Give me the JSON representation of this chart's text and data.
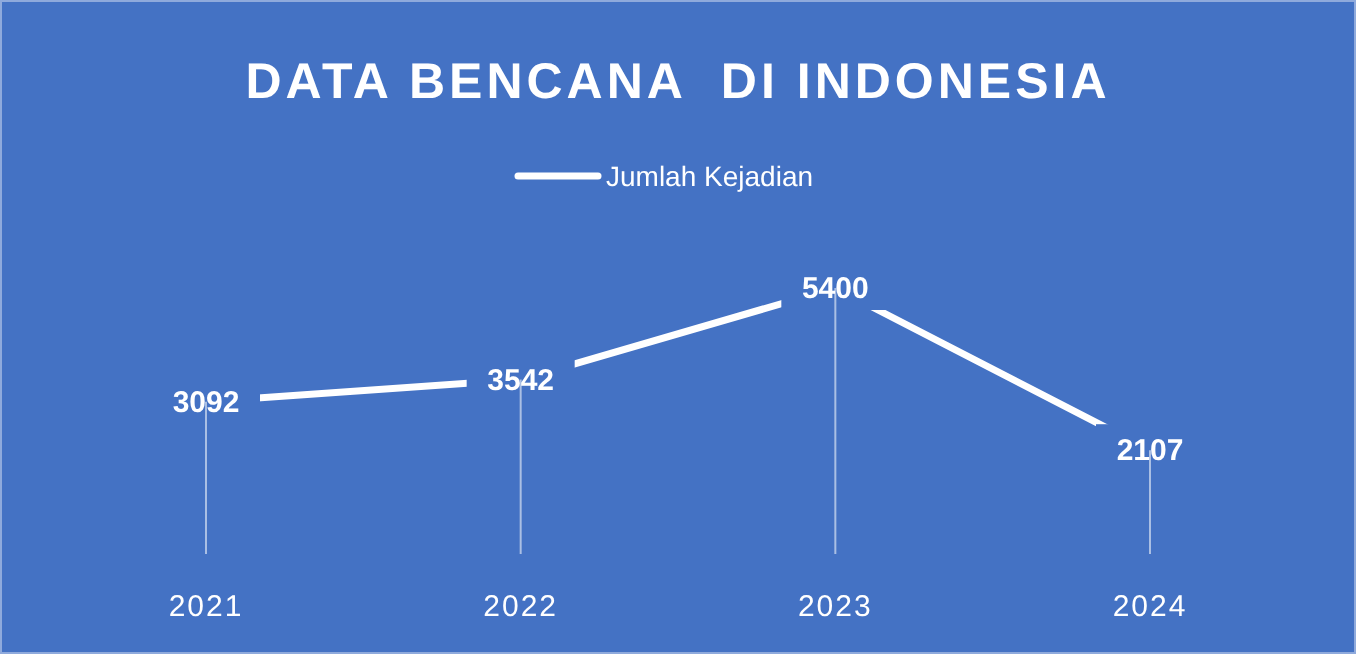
{
  "chart_data": {
    "type": "line",
    "title": "DATA BENCANA  DI INDONESIA",
    "categories": [
      "2021",
      "2022",
      "2023",
      "2024"
    ],
    "series": [
      {
        "name": "Jumlah Kejadian",
        "color": "#ffffff",
        "values": [
          3092,
          3542,
          5400,
          2107
        ]
      }
    ],
    "data_labels": true,
    "legend": "top",
    "grid": "x",
    "marker": "none",
    "line_style": "solid"
  }
}
